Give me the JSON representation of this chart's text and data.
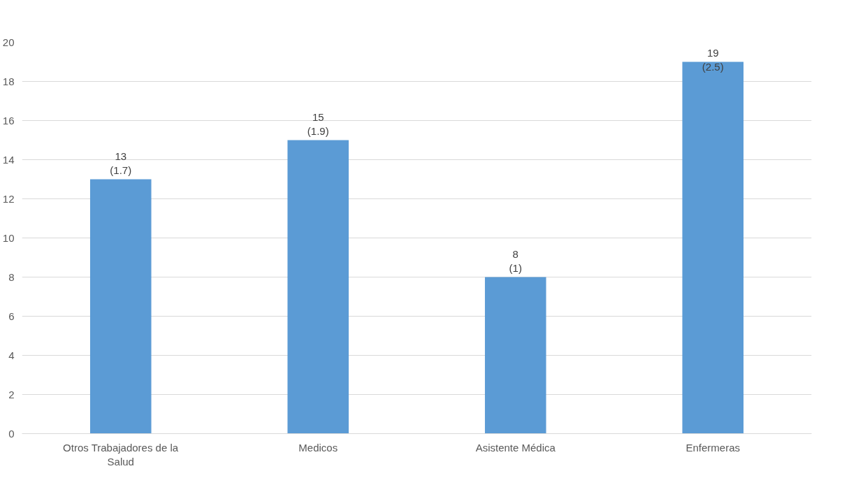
{
  "chart_data": {
    "type": "bar",
    "categories": [
      "Otros Trabajadores de la Salud",
      "Medicos",
      "Asistente Médica",
      "Enfermeras"
    ],
    "values": [
      13,
      15,
      8,
      19
    ],
    "value_labels": [
      "13\n(1.7)",
      "15\n(1.9)",
      "8\n(1)",
      "19\n(2.5)"
    ],
    "color": "#5b9bd5",
    "ylim": [
      0,
      20
    ],
    "yticks": [
      0,
      2,
      4,
      6,
      8,
      10,
      12,
      14,
      16,
      18,
      20
    ],
    "grid": "y"
  }
}
